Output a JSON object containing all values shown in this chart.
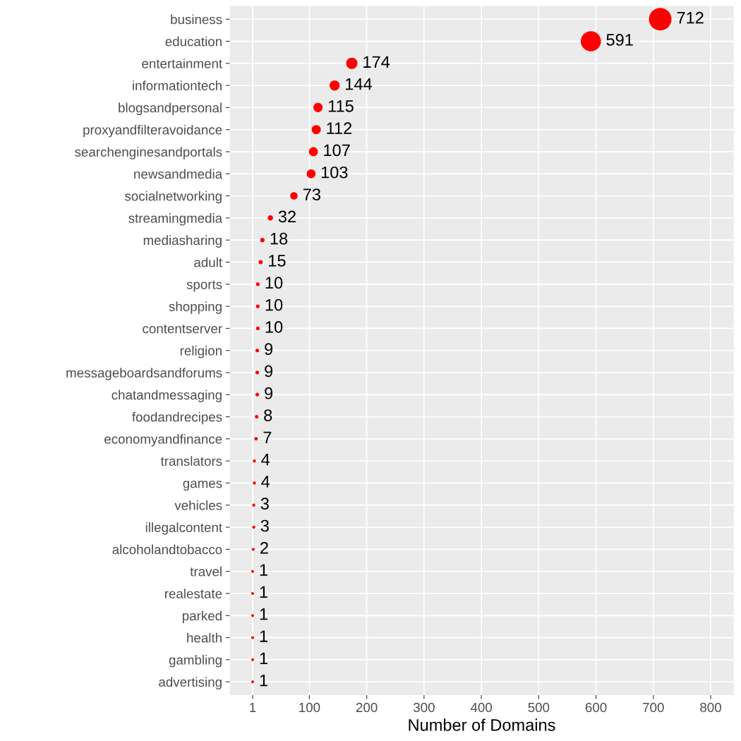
{
  "chart_data": {
    "type": "bubble",
    "orientation": "horizontal",
    "xlabel": "Number of Domains",
    "categories": [
      "business",
      "education",
      "entertainment",
      "informationtech",
      "blogsandpersonal",
      "proxyandfilteravoidance",
      "searchenginesandportals",
      "newsandmedia",
      "socialnetworking",
      "streamingmedia",
      "mediasharing",
      "adult",
      "sports",
      "shopping",
      "contentserver",
      "religion",
      "messageboardsandforums",
      "chatandmessaging",
      "foodandrecipes",
      "economyandfinance",
      "translators",
      "games",
      "vehicles",
      "illegalcontent",
      "alcoholandtobacco",
      "travel",
      "realestate",
      "parked",
      "health",
      "gambling",
      "advertising"
    ],
    "values": [
      712,
      591,
      174,
      144,
      115,
      112,
      107,
      103,
      73,
      32,
      18,
      15,
      10,
      10,
      10,
      9,
      9,
      9,
      8,
      7,
      4,
      4,
      3,
      3,
      2,
      1,
      1,
      1,
      1,
      1,
      1
    ],
    "sizes": [
      1,
      0.8,
      0.25,
      0.2,
      0.17,
      0.165,
      0.16,
      0.155,
      0.11,
      0.055,
      0.04,
      0.035,
      0.028,
      0.028,
      0.028,
      0.027,
      0.027,
      0.027,
      0.025,
      0.024,
      0.02,
      0.02,
      0.019,
      0.019,
      0.018,
      0.016,
      0.016,
      0.016,
      0.016,
      0.016,
      0.016
    ],
    "color": "#ff0000",
    "data_labels": true,
    "xlim": [
      -39,
      840
    ],
    "xticks": [
      1,
      100,
      200,
      300,
      400,
      500,
      600,
      700,
      800
    ],
    "grid": true,
    "legend": false
  }
}
